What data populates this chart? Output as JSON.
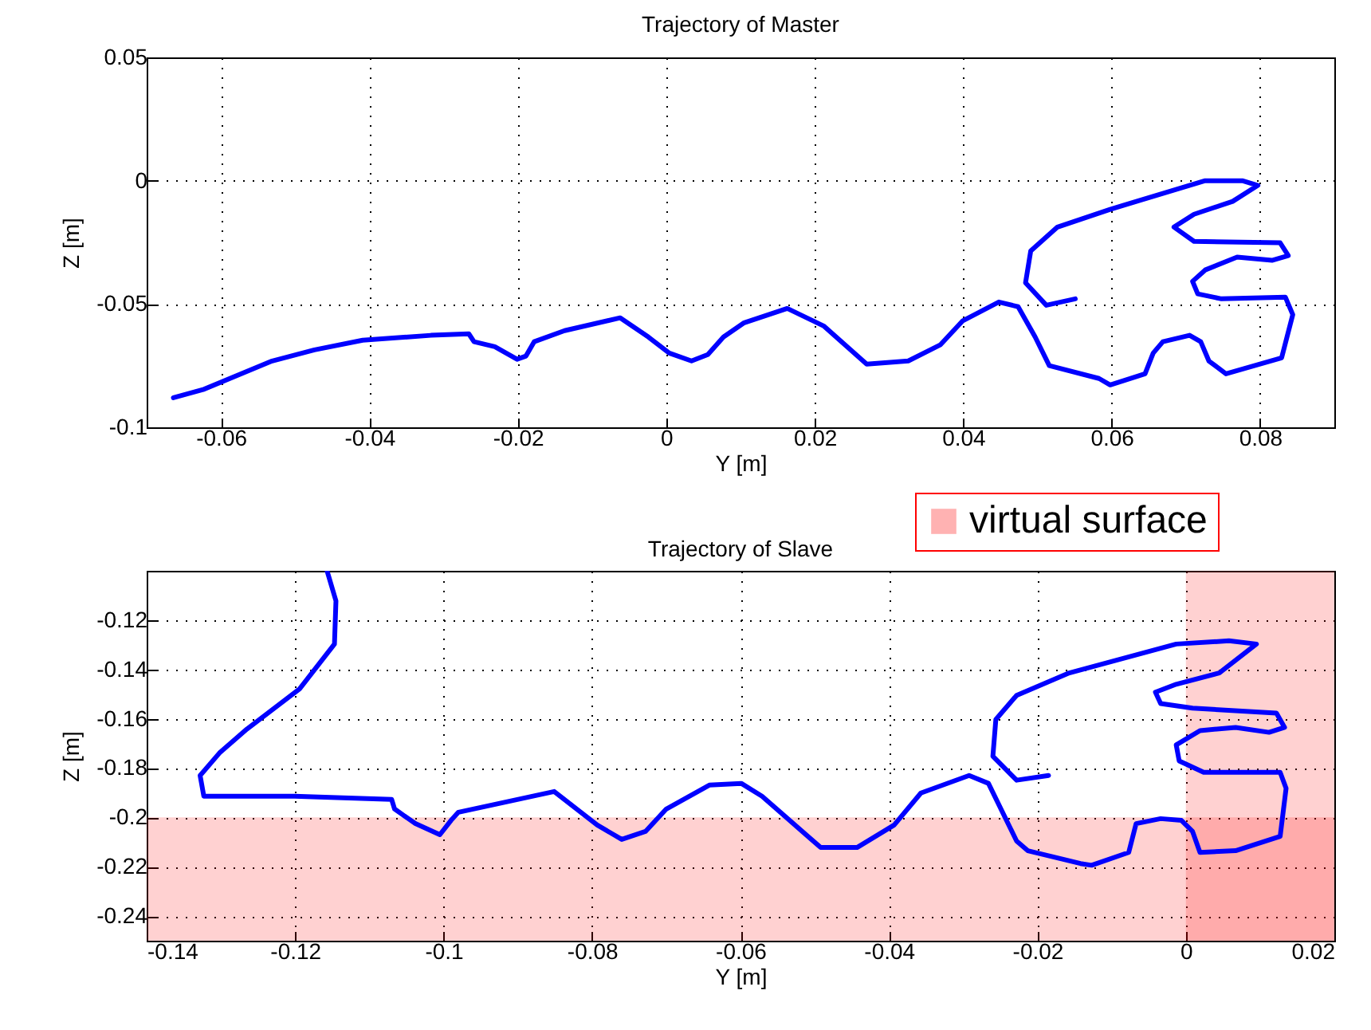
{
  "chart_data": [
    {
      "type": "line",
      "title": "Trajectory of Master",
      "xlabel": "Y [m]",
      "ylabel": "Z [m]",
      "xlim": [
        -0.07,
        0.09
      ],
      "xticks": [
        -0.06,
        -0.04,
        -0.02,
        0,
        0.02,
        0.04,
        0.06,
        0.08
      ],
      "ylim": [
        -0.1,
        0.05
      ],
      "yticks": [
        -0.1,
        -0.05,
        0,
        0.05
      ],
      "grid": true,
      "line_style": "solid",
      "series": [
        {
          "color": "#0000ff",
          "x": [
            -0.0664,
            -0.0624,
            -0.0531,
            -0.0474,
            -0.0409,
            -0.0317,
            -0.0266,
            -0.0259,
            -0.0231,
            -0.0201,
            -0.0189,
            -0.0178,
            -0.0137,
            -0.0062,
            -0.0024,
            0.0004,
            0.0034,
            0.0056,
            0.0077,
            0.0105,
            0.0163,
            0.0212,
            0.027,
            0.0326,
            0.0369,
            0.0399,
            0.0448,
            0.0474,
            0.0497,
            0.0516,
            0.0583,
            0.0598,
            0.0645,
            0.0656,
            0.0669,
            0.0705,
            0.072,
            0.0731,
            0.0754,
            0.0829,
            0.0844,
            0.0834,
            0.0748,
            0.0716,
            0.0709,
            0.0726,
            0.0769,
            0.0816,
            0.0838,
            0.0827,
            0.0711,
            0.0684,
            0.0711,
            0.0763,
            0.0797,
            0.0776,
            0.0726,
            0.0598,
            0.0527,
            0.0491,
            0.0484,
            0.0512,
            0.0551
          ],
          "values": [
            -0.088,
            -0.0847,
            -0.0731,
            -0.0686,
            -0.0647,
            -0.0627,
            -0.0621,
            -0.0653,
            -0.0673,
            -0.0724,
            -0.0711,
            -0.0653,
            -0.0608,
            -0.0556,
            -0.0634,
            -0.0699,
            -0.0731,
            -0.0705,
            -0.0634,
            -0.0576,
            -0.0518,
            -0.0589,
            -0.0744,
            -0.0731,
            -0.0666,
            -0.0569,
            -0.0492,
            -0.0511,
            -0.0634,
            -0.075,
            -0.0802,
            -0.0828,
            -0.0783,
            -0.0699,
            -0.0653,
            -0.0627,
            -0.0653,
            -0.0731,
            -0.0783,
            -0.0718,
            -0.0543,
            -0.0472,
            -0.0479,
            -0.0459,
            -0.0408,
            -0.0362,
            -0.031,
            -0.0323,
            -0.0304,
            -0.0252,
            -0.0246,
            -0.0188,
            -0.0136,
            -0.0084,
            -0.0019,
            0,
            0,
            -0.0116,
            -0.0188,
            -0.0285,
            -0.0414,
            -0.0505,
            -0.0479
          ]
        }
      ]
    },
    {
      "type": "line",
      "title": "Trajectory of Slave",
      "xlabel": "Y [m]",
      "ylabel": "Z [m]",
      "xlim": [
        -0.14,
        0.02
      ],
      "xticks": [
        -0.14,
        -0.12,
        -0.1,
        -0.08,
        -0.06,
        -0.04,
        -0.02,
        0,
        0.02
      ],
      "ylim": [
        -0.25,
        -0.1
      ],
      "yticks": [
        -0.24,
        -0.22,
        -0.2,
        -0.18,
        -0.16,
        -0.14,
        -0.12
      ],
      "grid": true,
      "line_style": "solid",
      "legend": "top right",
      "bands": [
        {
          "axis": "y",
          "from": -0.25,
          "to": -0.2,
          "label": "virtual surface",
          "color": "#ff0000"
        },
        {
          "axis": "x",
          "from": 0,
          "to": 0.02,
          "color": "#ff0000"
        }
      ],
      "series": [
        {
          "color": "#0000ff",
          "x": [
            -0.1157,
            -0.1145,
            -0.1147,
            -0.1194,
            -0.1265,
            -0.1302,
            -0.1328,
            -0.1323,
            -0.1201,
            -0.107,
            -0.1066,
            -0.1038,
            -0.1005,
            -0.099,
            -0.098,
            -0.0851,
            -0.0793,
            -0.076,
            -0.0728,
            -0.07,
            -0.0642,
            -0.0599,
            -0.0571,
            -0.0492,
            -0.0443,
            -0.0393,
            -0.0357,
            -0.0292,
            -0.0266,
            -0.0228,
            -0.0213,
            -0.0142,
            -0.0127,
            -0.0077,
            -0.0067,
            -0.0034,
            -0.0006,
            0.0009,
            0.0019,
            0.0067,
            0.0127,
            0.0135,
            0.0127,
            0.0024,
            -0.0009,
            -0.0013,
            0.0019,
            0.0067,
            0.0112,
            0.0133,
            0.0122,
            0.0009,
            -0.0034,
            -0.0041,
            -0.0013,
            0.0045,
            0.0095,
            0.0058,
            -0.0013,
            -0.0157,
            -0.0228,
            -0.0256,
            -0.026,
            -0.0228,
            -0.0185
          ],
          "values": [
            -0.1,
            -0.1122,
            -0.1297,
            -0.1479,
            -0.1642,
            -0.1739,
            -0.183,
            -0.1914,
            -0.1914,
            -0.1927,
            -0.1966,
            -0.2025,
            -0.207,
            -0.2012,
            -0.1979,
            -0.1895,
            -0.2031,
            -0.2089,
            -0.2057,
            -0.1966,
            -0.1869,
            -0.1862,
            -0.1914,
            -0.2122,
            -0.2122,
            -0.2031,
            -0.1901,
            -0.183,
            -0.1862,
            -0.2096,
            -0.2135,
            -0.2187,
            -0.2194,
            -0.2142,
            -0.2025,
            -0.2005,
            -0.2012,
            -0.2057,
            -0.2142,
            -0.2135,
            -0.2077,
            -0.1882,
            -0.1817,
            -0.1817,
            -0.1771,
            -0.1706,
            -0.1648,
            -0.1635,
            -0.1655,
            -0.1635,
            -0.1577,
            -0.1557,
            -0.1538,
            -0.1492,
            -0.146,
            -0.1414,
            -0.1297,
            -0.1284,
            -0.1297,
            -0.1414,
            -0.1505,
            -0.1603,
            -0.1752,
            -0.1849,
            -0.183
          ]
        }
      ]
    }
  ]
}
